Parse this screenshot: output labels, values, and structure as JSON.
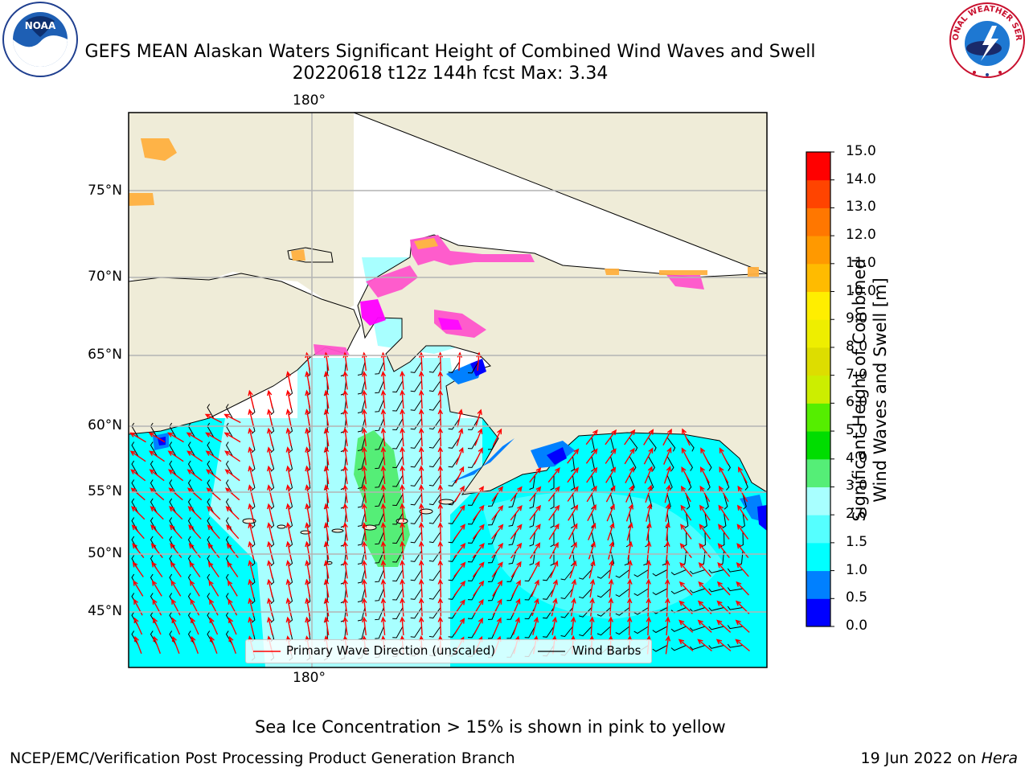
{
  "title": {
    "line1": "GEFS MEAN Alaskan Waters Significant Height of Combined Wind Waves and Swell",
    "line2": "20220618 t12z 144h fcst   Max: 3.34"
  },
  "map": {
    "lon_labels": [
      "180°",
      "180°"
    ],
    "lat_labels": [
      "75°N",
      "70°N",
      "65°N",
      "60°N",
      "55°N",
      "50°N",
      "45°N"
    ],
    "colors": {
      "land": "#efecd8",
      "ocean_low": "#00ffff",
      "ocean_mid": "#a8ffff",
      "swell_3m": "#55ee77",
      "shallow": "#0080ff",
      "deep_blue": "#0000ff",
      "ice_pink": "#ff55cc",
      "ice_magenta": "#ff00ff",
      "ice_orange": "#ffb040",
      "wave_arrow": "#ff0000",
      "wind_barb": "#000000",
      "grid": "#b4b4b4"
    }
  },
  "legend": {
    "wave_label": "Primary Wave Direction (unscaled)",
    "wind_label": "Wind Barbs"
  },
  "colorbar": {
    "label_line1": "Significant Height of Combined",
    "label_line2": "Wind Waves and Swell [m]",
    "ticks": [
      "0.0",
      "0.5",
      "1.0",
      "1.5",
      "2.0",
      "3.0",
      "4.0",
      "5.0",
      "6.0",
      "7.0",
      "8.0",
      "9.0",
      "10.0",
      "11.0",
      "12.0",
      "13.0",
      "14.0",
      "15.0"
    ],
    "colors": [
      "#0000ff",
      "#0080ff",
      "#00ffff",
      "#55ffff",
      "#a8ffff",
      "#55ee77",
      "#00dd00",
      "#55ee00",
      "#ccee00",
      "#dddd00",
      "#eeee00",
      "#ffee00",
      "#ffbb00",
      "#ff9900",
      "#ff7700",
      "#ff4400",
      "#ff0000"
    ]
  },
  "notes": {
    "ice": "Sea Ice Concentration > 15% is shown in pink to yellow"
  },
  "footer": {
    "left": "NCEP/EMC/Verification Post Processing Product Generation Branch",
    "date": "19 Jun 2022 on ",
    "host": "Hera"
  },
  "logos": {
    "noaa_text": "NOAA",
    "nws_text": "NATIONAL WEATHER SERVICE"
  }
}
